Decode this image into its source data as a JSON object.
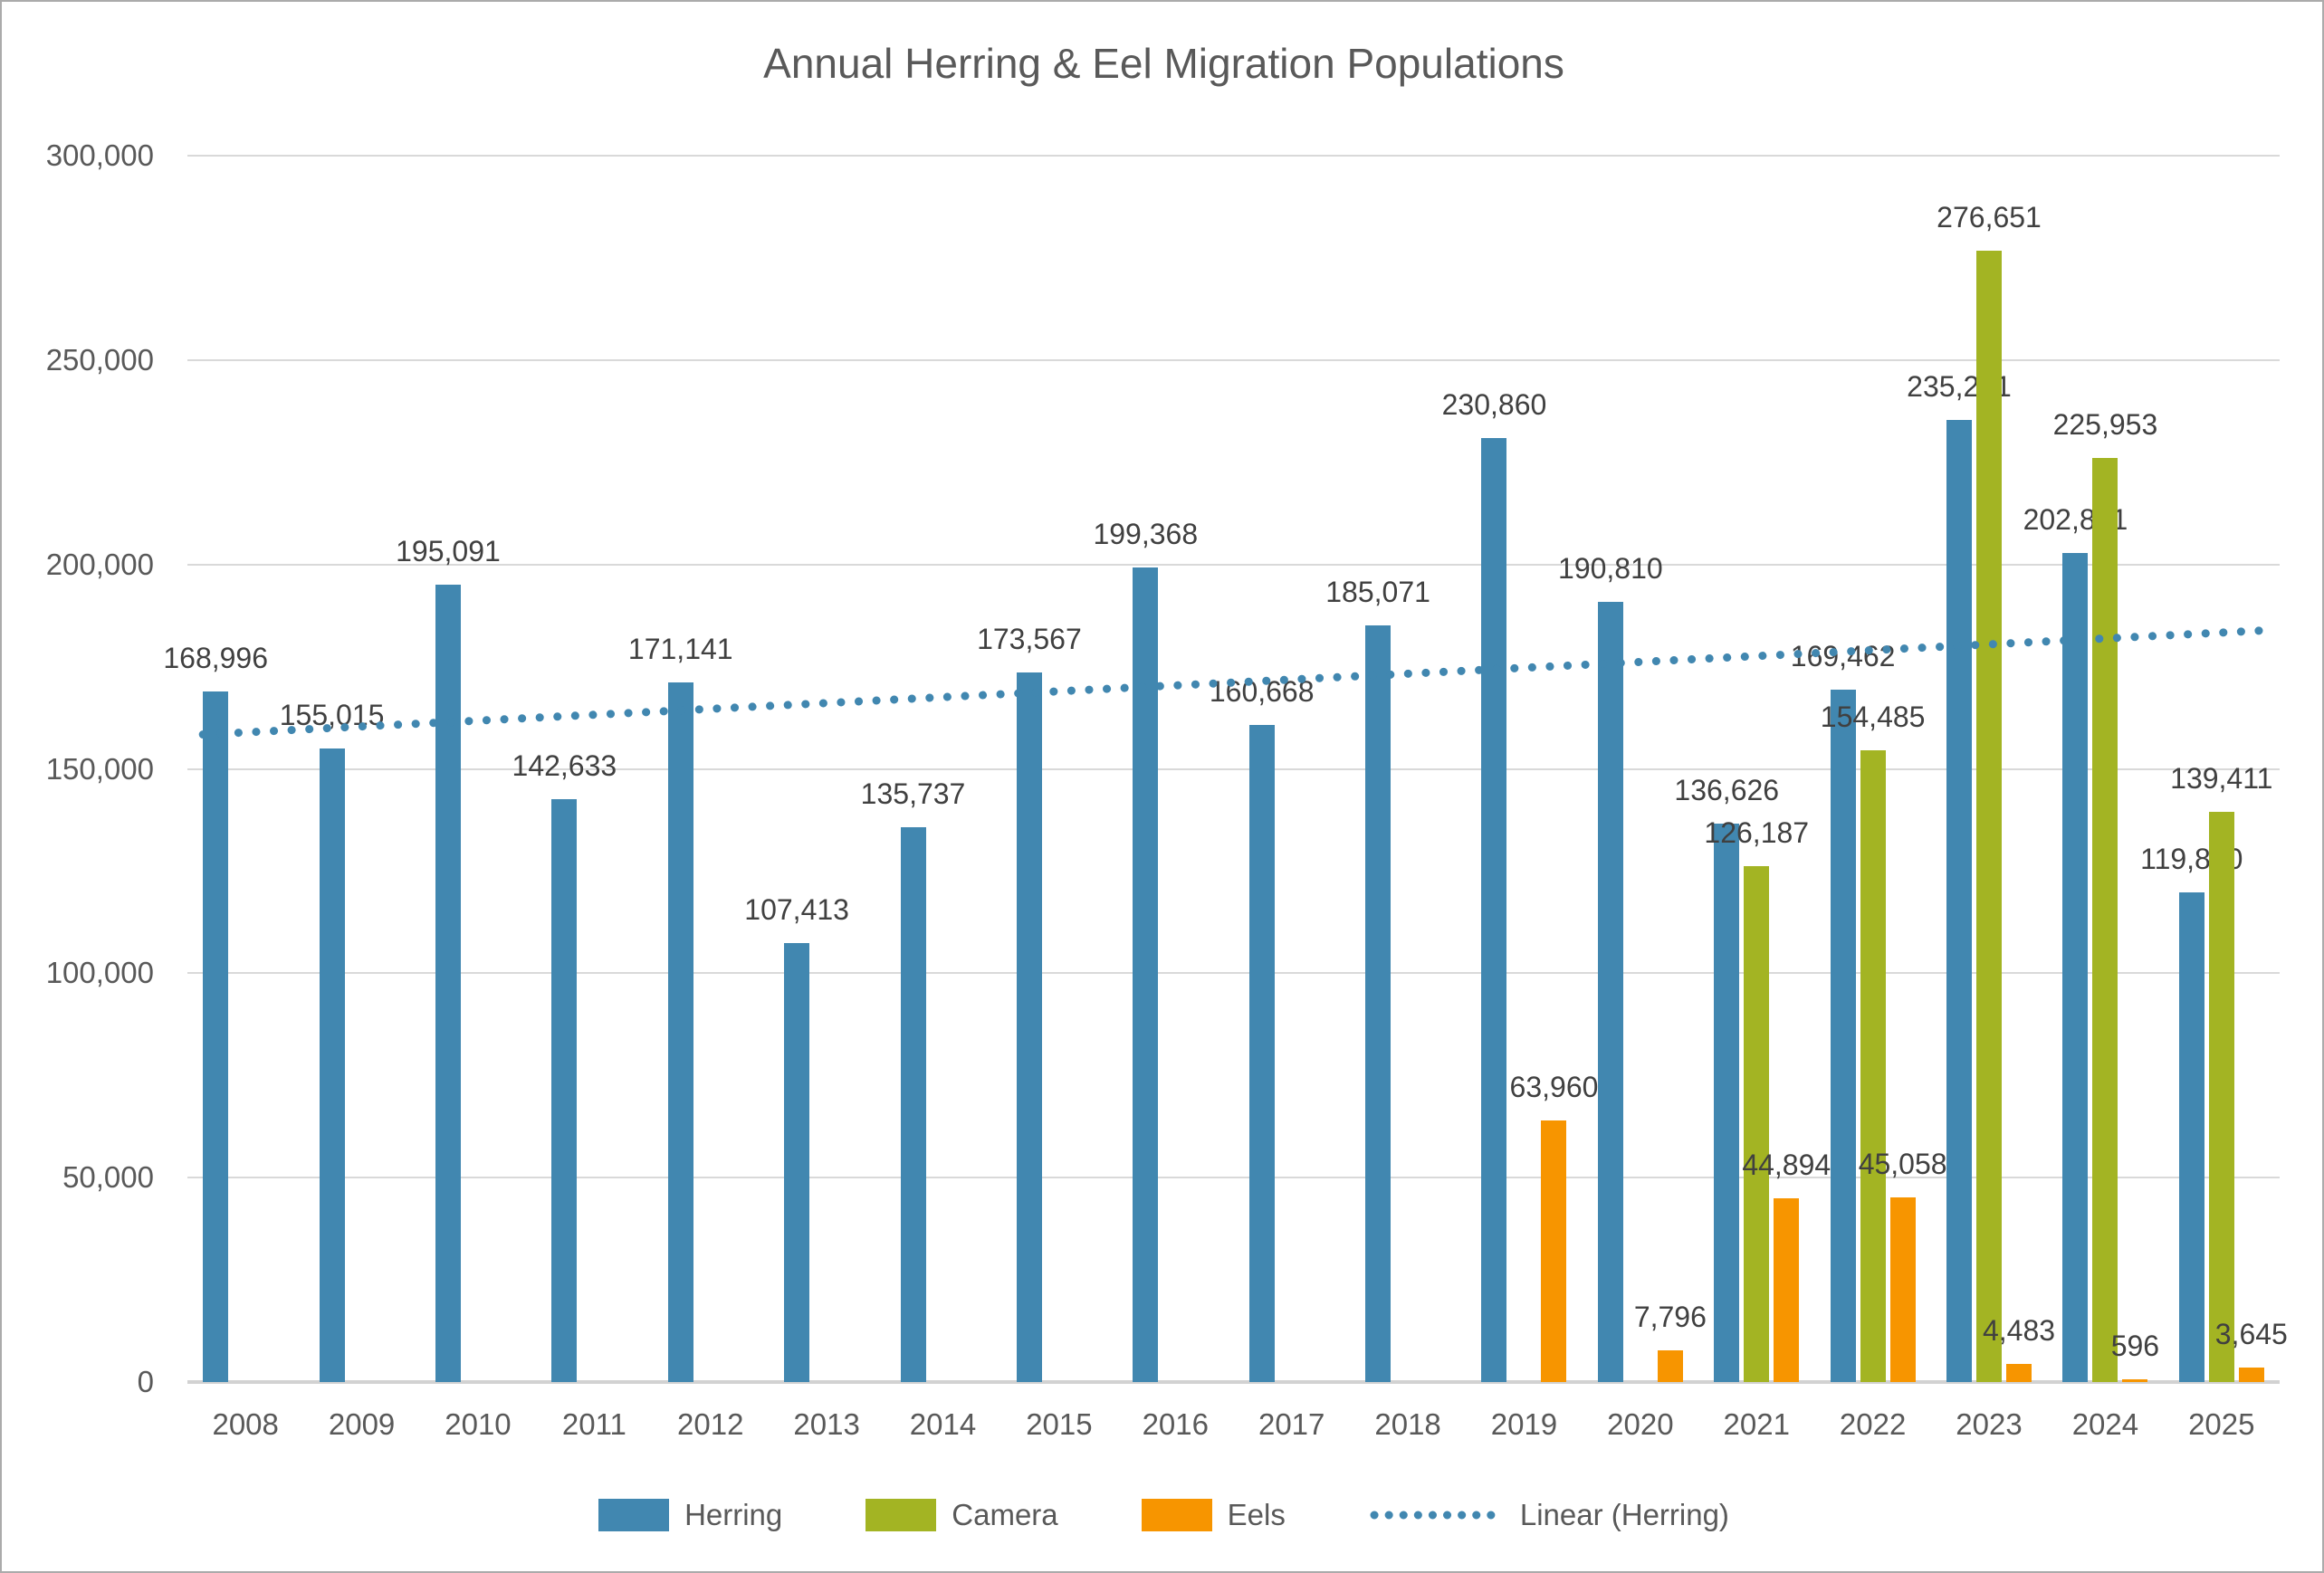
{
  "title": "Annual Herring & Eel Migration Populations",
  "chart_data": {
    "type": "bar",
    "title": "Annual Herring & Eel Migration Populations",
    "categories": [
      "2008",
      "2009",
      "2010",
      "2011",
      "2012",
      "2013",
      "2014",
      "2015",
      "2016",
      "2017",
      "2018",
      "2019",
      "2020",
      "2021",
      "2022",
      "2023",
      "2024",
      "2025"
    ],
    "series": [
      {
        "name": "Herring",
        "color": "#4187b0",
        "values": [
          168996,
          155015,
          195091,
          142633,
          171141,
          107413,
          135737,
          173567,
          199368,
          160668,
          185071,
          230860,
          190810,
          136626,
          169462,
          235291,
          202851,
          119820
        ],
        "labels": [
          "168,996",
          "155,015",
          "195,091",
          "142,633",
          "171,141",
          "107,413",
          "135,737",
          "173,567",
          "199,368",
          "160,668",
          "185,071",
          "230,860",
          "190,810",
          "136,626",
          "169,462",
          "235,291",
          "202,851",
          "119,820"
        ]
      },
      {
        "name": "Camera",
        "color": "#a3b423",
        "values": [
          null,
          null,
          null,
          null,
          null,
          null,
          null,
          null,
          null,
          null,
          null,
          null,
          null,
          126187,
          154485,
          276651,
          225953,
          139411
        ],
        "labels": [
          null,
          null,
          null,
          null,
          null,
          null,
          null,
          null,
          null,
          null,
          null,
          null,
          null,
          "126,187",
          "154,485",
          "276,651",
          "225,953",
          "139,411"
        ]
      },
      {
        "name": "Eels",
        "color": "#f79500",
        "values": [
          null,
          null,
          null,
          null,
          null,
          null,
          null,
          null,
          null,
          null,
          null,
          63960,
          7796,
          44894,
          45058,
          4483,
          596,
          3645
        ],
        "labels": [
          null,
          null,
          null,
          null,
          null,
          null,
          null,
          null,
          null,
          null,
          null,
          "63,960",
          "7,796",
          "44,894",
          "45,058",
          "4,483",
          "596",
          "3,645"
        ]
      }
    ],
    "trendline": {
      "name": "Linear (Herring)",
      "series": "Herring",
      "style": "dotted",
      "color": "#4187b0",
      "start_value": 158400,
      "end_value": 183800
    },
    "y_axis": {
      "min": 0,
      "max": 300000,
      "ticks": [
        {
          "value": 0,
          "label": "0"
        },
        {
          "value": 50000,
          "label": "50,000"
        },
        {
          "value": 100000,
          "label": "100,000"
        },
        {
          "value": 150000,
          "label": "150,000"
        },
        {
          "value": 200000,
          "label": "200,000"
        },
        {
          "value": 250000,
          "label": "250,000"
        },
        {
          "value": 300000,
          "label": "300,000"
        }
      ]
    },
    "grid": true,
    "legend_position": "bottom",
    "colors": {
      "title_text": "#595959",
      "axis_text": "#595959",
      "data_label_text": "#404040",
      "gridline": "#d9d9d9",
      "axis_line": "#d2d2d2"
    }
  }
}
